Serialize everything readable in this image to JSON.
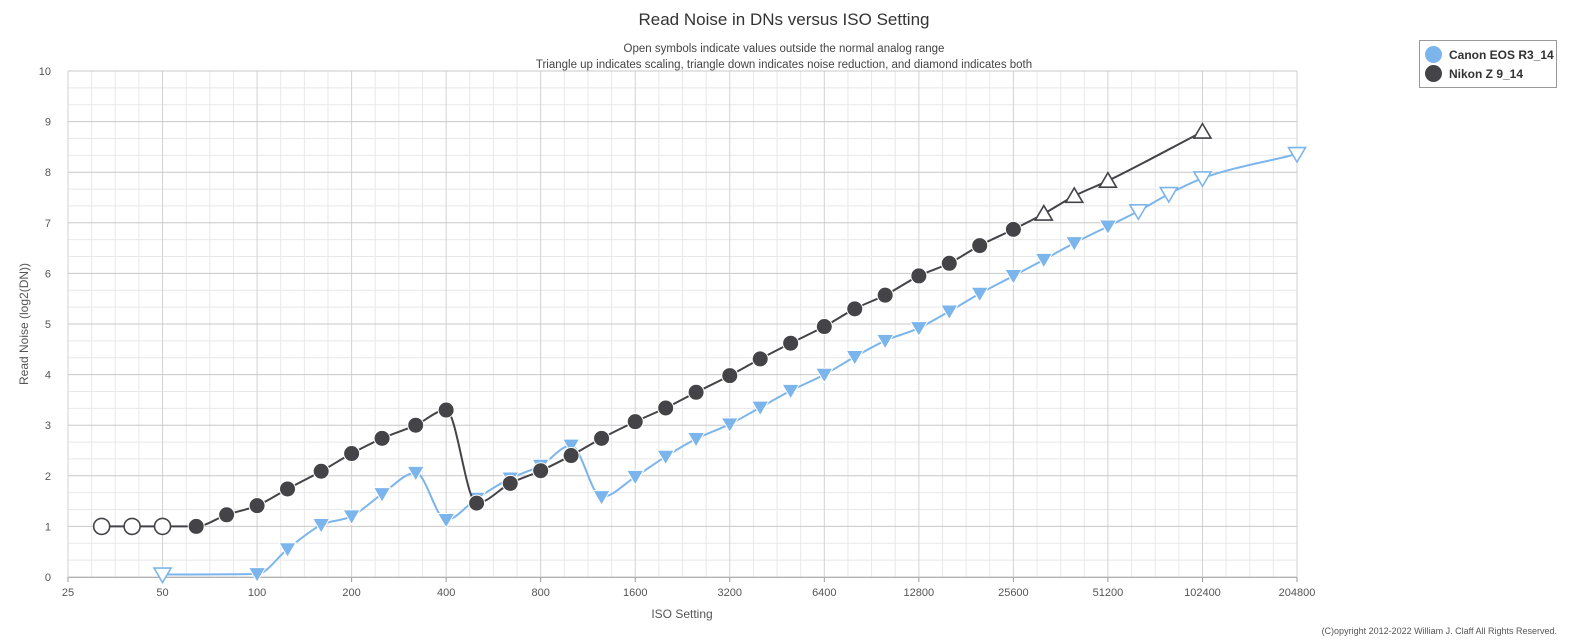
{
  "chart_data": {
    "type": "line",
    "title": "Read Noise in DNs versus ISO Setting",
    "subtitle_lines": [
      "Open symbols indicate values outside the normal analog range",
      "Triangle up indicates scaling, triangle down indicates noise reduction, and diamond indicates both"
    ],
    "xlabel": "ISO Setting",
    "ylabel": "Read Noise (log2(DN))",
    "x_scale": "log2",
    "xlim": [
      25,
      204800
    ],
    "ylim": [
      0,
      10
    ],
    "x_ticks": [
      25,
      50,
      100,
      200,
      400,
      800,
      1600,
      3200,
      6400,
      12800,
      25600,
      51200,
      102400,
      204800
    ],
    "y_ticks": [
      0,
      1,
      2,
      3,
      4,
      5,
      6,
      7,
      8,
      9,
      10
    ],
    "grid": true,
    "legend_position": "top-right",
    "copyright": "(C)opyright 2012-2022 William J. Claff All Rights Reserved.",
    "series": [
      {
        "name": "Canon EOS R3_14",
        "color": "#7cb5ec",
        "points": [
          {
            "x": 50,
            "y": 0.05,
            "marker": "triangle-down",
            "open": true
          },
          {
            "x": 100,
            "y": 0.06,
            "marker": "triangle-down",
            "open": false
          },
          {
            "x": 125,
            "y": 0.55,
            "marker": "triangle-down",
            "open": false
          },
          {
            "x": 160,
            "y": 1.03,
            "marker": "triangle-down",
            "open": false
          },
          {
            "x": 200,
            "y": 1.2,
            "marker": "triangle-down",
            "open": false
          },
          {
            "x": 250,
            "y": 1.64,
            "marker": "triangle-down",
            "open": false
          },
          {
            "x": 320,
            "y": 2.06,
            "marker": "triangle-down",
            "open": false
          },
          {
            "x": 400,
            "y": 1.13,
            "marker": "triangle-down",
            "open": false
          },
          {
            "x": 500,
            "y": 1.55,
            "marker": "triangle-down",
            "open": false
          },
          {
            "x": 640,
            "y": 1.95,
            "marker": "triangle-down",
            "open": false
          },
          {
            "x": 800,
            "y": 2.2,
            "marker": "triangle-down",
            "open": false
          },
          {
            "x": 1000,
            "y": 2.6,
            "marker": "triangle-down",
            "open": false
          },
          {
            "x": 1250,
            "y": 1.58,
            "marker": "triangle-down",
            "open": false
          },
          {
            "x": 1600,
            "y": 1.98,
            "marker": "triangle-down",
            "open": false
          },
          {
            "x": 2000,
            "y": 2.38,
            "marker": "triangle-down",
            "open": false
          },
          {
            "x": 2500,
            "y": 2.73,
            "marker": "triangle-down",
            "open": false
          },
          {
            "x": 3200,
            "y": 3.02,
            "marker": "triangle-down",
            "open": false
          },
          {
            "x": 4000,
            "y": 3.35,
            "marker": "triangle-down",
            "open": false
          },
          {
            "x": 5000,
            "y": 3.68,
            "marker": "triangle-down",
            "open": false
          },
          {
            "x": 6400,
            "y": 4.0,
            "marker": "triangle-down",
            "open": false
          },
          {
            "x": 8000,
            "y": 4.35,
            "marker": "triangle-down",
            "open": false
          },
          {
            "x": 10000,
            "y": 4.67,
            "marker": "triangle-down",
            "open": false
          },
          {
            "x": 12800,
            "y": 4.92,
            "marker": "triangle-down",
            "open": false
          },
          {
            "x": 16000,
            "y": 5.25,
            "marker": "triangle-down",
            "open": false
          },
          {
            "x": 20000,
            "y": 5.6,
            "marker": "triangle-down",
            "open": false
          },
          {
            "x": 25600,
            "y": 5.95,
            "marker": "triangle-down",
            "open": false
          },
          {
            "x": 32000,
            "y": 6.27,
            "marker": "triangle-down",
            "open": false
          },
          {
            "x": 40000,
            "y": 6.6,
            "marker": "triangle-down",
            "open": false
          },
          {
            "x": 51200,
            "y": 6.93,
            "marker": "triangle-down",
            "open": false
          },
          {
            "x": 64000,
            "y": 7.23,
            "marker": "triangle-down",
            "open": true
          },
          {
            "x": 80000,
            "y": 7.57,
            "marker": "triangle-down",
            "open": true
          },
          {
            "x": 102400,
            "y": 7.88,
            "marker": "triangle-down",
            "open": true
          },
          {
            "x": 204800,
            "y": 8.36,
            "marker": "triangle-down",
            "open": true
          }
        ]
      },
      {
        "name": "Nikon Z 9_14",
        "color": "#434348",
        "points": [
          {
            "x": 32,
            "y": 1.0,
            "marker": "circle",
            "open": true
          },
          {
            "x": 40,
            "y": 1.0,
            "marker": "circle",
            "open": true
          },
          {
            "x": 50,
            "y": 1.0,
            "marker": "circle",
            "open": true
          },
          {
            "x": 64,
            "y": 1.0,
            "marker": "circle",
            "open": false
          },
          {
            "x": 80,
            "y": 1.23,
            "marker": "circle",
            "open": false
          },
          {
            "x": 100,
            "y": 1.41,
            "marker": "circle",
            "open": false
          },
          {
            "x": 125,
            "y": 1.74,
            "marker": "circle",
            "open": false
          },
          {
            "x": 160,
            "y": 2.09,
            "marker": "circle",
            "open": false
          },
          {
            "x": 200,
            "y": 2.44,
            "marker": "circle",
            "open": false
          },
          {
            "x": 250,
            "y": 2.74,
            "marker": "circle",
            "open": false
          },
          {
            "x": 320,
            "y": 3.0,
            "marker": "circle",
            "open": false
          },
          {
            "x": 400,
            "y": 3.3,
            "marker": "circle",
            "open": false
          },
          {
            "x": 500,
            "y": 1.46,
            "marker": "circle",
            "open": false
          },
          {
            "x": 640,
            "y": 1.85,
            "marker": "circle",
            "open": false
          },
          {
            "x": 800,
            "y": 2.1,
            "marker": "circle",
            "open": false
          },
          {
            "x": 1000,
            "y": 2.4,
            "marker": "circle",
            "open": false
          },
          {
            "x": 1250,
            "y": 2.74,
            "marker": "circle",
            "open": false
          },
          {
            "x": 1600,
            "y": 3.07,
            "marker": "circle",
            "open": false
          },
          {
            "x": 2000,
            "y": 3.34,
            "marker": "circle",
            "open": false
          },
          {
            "x": 2500,
            "y": 3.65,
            "marker": "circle",
            "open": false
          },
          {
            "x": 3200,
            "y": 3.98,
            "marker": "circle",
            "open": false
          },
          {
            "x": 4000,
            "y": 4.31,
            "marker": "circle",
            "open": false
          },
          {
            "x": 5000,
            "y": 4.62,
            "marker": "circle",
            "open": false
          },
          {
            "x": 6400,
            "y": 4.95,
            "marker": "circle",
            "open": false
          },
          {
            "x": 8000,
            "y": 5.3,
            "marker": "circle",
            "open": false
          },
          {
            "x": 10000,
            "y": 5.57,
            "marker": "circle",
            "open": false
          },
          {
            "x": 12800,
            "y": 5.95,
            "marker": "circle",
            "open": false
          },
          {
            "x": 16000,
            "y": 6.2,
            "marker": "circle",
            "open": false
          },
          {
            "x": 20000,
            "y": 6.55,
            "marker": "circle",
            "open": false
          },
          {
            "x": 25600,
            "y": 6.87,
            "marker": "circle",
            "open": false
          },
          {
            "x": 32000,
            "y": 7.18,
            "marker": "triangle-up",
            "open": true
          },
          {
            "x": 40000,
            "y": 7.53,
            "marker": "triangle-up",
            "open": true
          },
          {
            "x": 51200,
            "y": 7.83,
            "marker": "triangle-up",
            "open": true
          },
          {
            "x": 102400,
            "y": 8.8,
            "marker": "triangle-up",
            "open": true
          }
        ]
      }
    ]
  }
}
